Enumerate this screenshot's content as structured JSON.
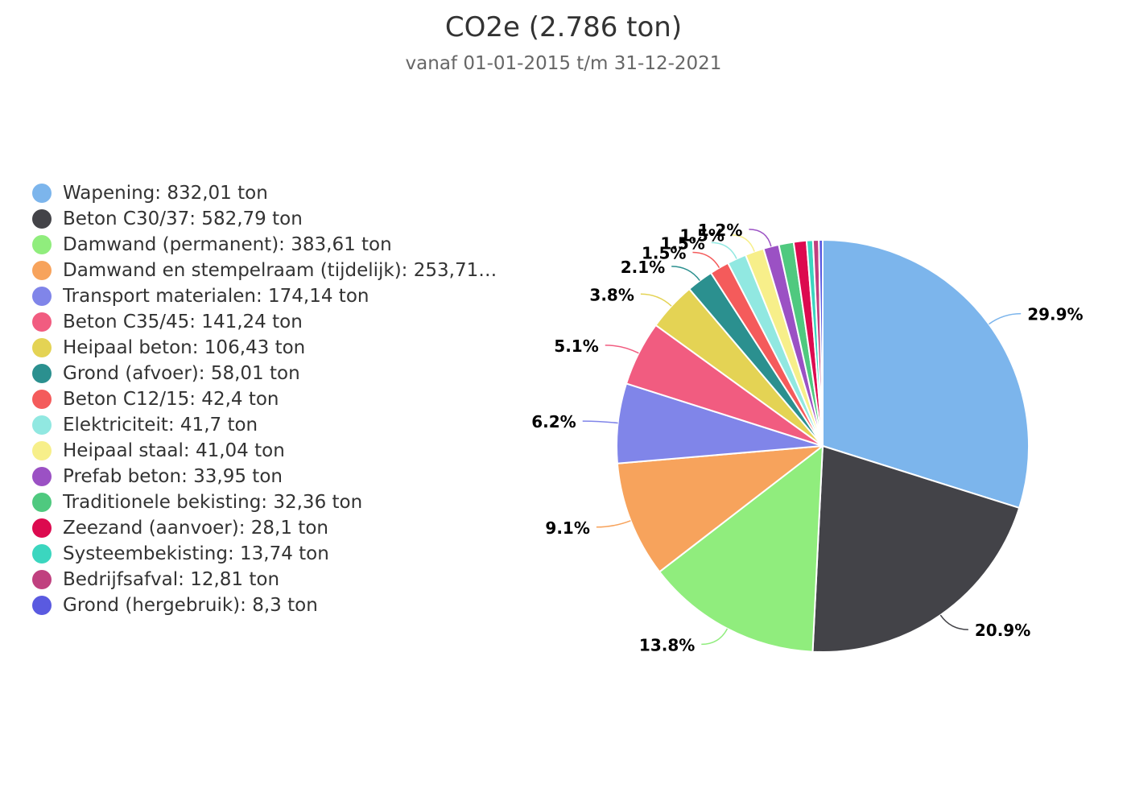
{
  "chart_data": {
    "type": "pie",
    "title": "CO2e (2.786 ton)",
    "subtitle": "vanaf 01-01-2015 t/m 31-12-2021",
    "legend_position": "left",
    "slices": [
      {
        "label": "Wapening: 832,01 ton",
        "value": 832.01,
        "percent_label": "29.9%",
        "color": "#7cb5ec"
      },
      {
        "label": "Beton C30/37: 582,79 ton",
        "value": 582.79,
        "percent_label": "20.9%",
        "color": "#434348"
      },
      {
        "label": "Damwand (permanent): 383,61 ton",
        "value": 383.61,
        "percent_label": "13.8%",
        "color": "#90ed7d"
      },
      {
        "label": "Damwand en stempelraam (tijdelijk): 253,71…",
        "value": 253.71,
        "percent_label": "9.1%",
        "color": "#f7a35c"
      },
      {
        "label": "Transport materialen: 174,14 ton",
        "value": 174.14,
        "percent_label": "6.2%",
        "color": "#8085e9"
      },
      {
        "label": "Beton C35/45: 141,24 ton",
        "value": 141.24,
        "percent_label": "5.1%",
        "color": "#f15c80"
      },
      {
        "label": "Heipaal beton: 106,43 ton",
        "value": 106.43,
        "percent_label": "3.8%",
        "color": "#e4d354"
      },
      {
        "label": "Grond (afvoer): 58,01 ton",
        "value": 58.01,
        "percent_label": "2.1%",
        "color": "#2b908f"
      },
      {
        "label": "Beton C12/15: 42,4 ton",
        "value": 42.4,
        "percent_label": "1.5%",
        "color": "#f45b5b"
      },
      {
        "label": "Elektriciteit: 41,7 ton",
        "value": 41.7,
        "percent_label": "1.5%",
        "color": "#91e8e1"
      },
      {
        "label": "Heipaal staal: 41,04 ton",
        "value": 41.04,
        "percent_label": "1.5%",
        "color": "#f7ef8a"
      },
      {
        "label": "Prefab beton: 33,95 ton",
        "value": 33.95,
        "percent_label": "1.2%",
        "color": "#9b51c4"
      },
      {
        "label": "Traditionele bekisting: 32,36 ton",
        "value": 32.36,
        "percent_label": "",
        "color": "#4fc97f"
      },
      {
        "label": "Zeezand (aanvoer): 28,1 ton",
        "value": 28.1,
        "percent_label": "",
        "color": "#dc0a4f"
      },
      {
        "label": "Systeembekisting: 13,74 ton",
        "value": 13.74,
        "percent_label": "",
        "color": "#3bd6bf"
      },
      {
        "label": "Bedrijfsafval: 12,81 ton",
        "value": 12.81,
        "percent_label": "",
        "color": "#c0407f"
      },
      {
        "label": "Grond (hergebruik): 8,3 ton",
        "value": 8.3,
        "percent_label": "",
        "color": "#5a5ae0"
      }
    ]
  }
}
